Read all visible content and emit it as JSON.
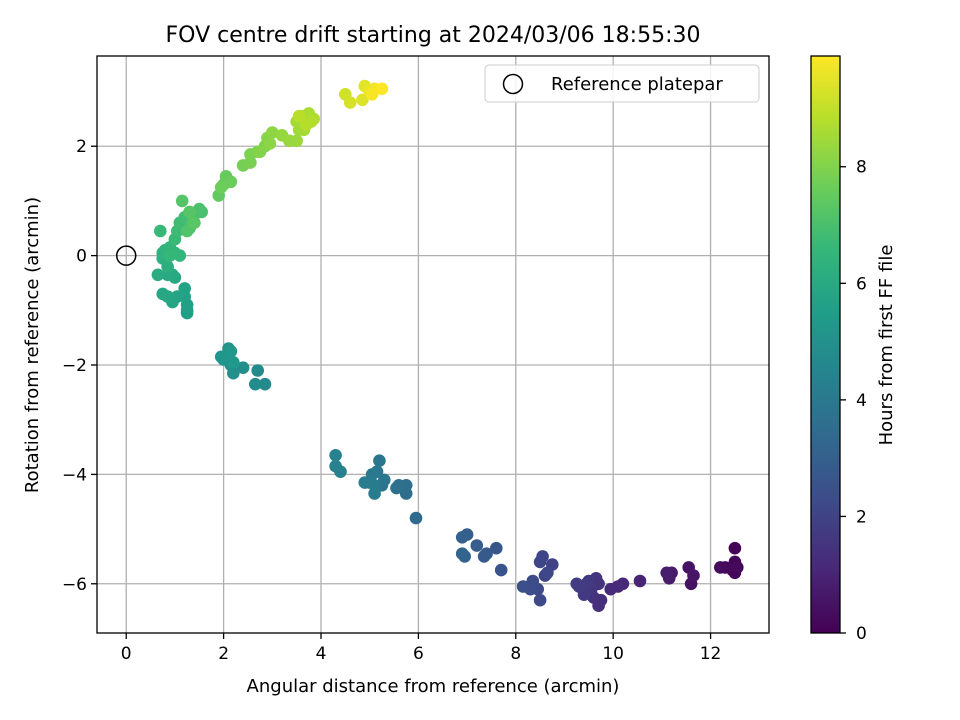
{
  "chart_data": {
    "type": "scatter",
    "title": "FOV centre drift starting at 2024/03/06 18:55:30",
    "xlabel": "Angular distance from reference (arcmin)",
    "ylabel": "Rotation from reference (arcmin)",
    "xlim": [
      -0.6,
      13.2
    ],
    "ylim": [
      -6.9,
      3.65
    ],
    "xticks": [
      0,
      2,
      4,
      6,
      8,
      10,
      12
    ],
    "yticks": [
      -6,
      -4,
      -2,
      0,
      2
    ],
    "grid": true,
    "legend": {
      "placement": "top-right",
      "entries": [
        "Reference platepar"
      ]
    },
    "reference_point": {
      "x": 0,
      "y": 0
    },
    "colorbar": {
      "label": "Hours from first FF file",
      "colormap": "viridis",
      "range": [
        0,
        9.9
      ],
      "ticks": [
        0,
        2,
        4,
        6,
        8
      ]
    },
    "points": [
      [
        12.5,
        -5.35,
        0.05
      ],
      [
        12.5,
        -5.6,
        0.1
      ],
      [
        12.45,
        -5.75,
        0.12
      ],
      [
        12.5,
        -5.8,
        0.15
      ],
      [
        12.3,
        -5.7,
        0.2
      ],
      [
        12.55,
        -5.7,
        0.25
      ],
      [
        12.2,
        -5.7,
        0.3
      ],
      [
        11.6,
        -6.0,
        0.45
      ],
      [
        11.55,
        -5.7,
        0.5
      ],
      [
        11.65,
        -5.85,
        0.55
      ],
      [
        11.2,
        -5.8,
        0.7
      ],
      [
        11.15,
        -5.9,
        0.75
      ],
      [
        11.1,
        -5.8,
        0.8
      ],
      [
        10.55,
        -5.95,
        1.0
      ],
      [
        10.2,
        -6.0,
        1.1
      ],
      [
        10.1,
        -6.05,
        1.15
      ],
      [
        9.95,
        -6.1,
        1.2
      ],
      [
        9.75,
        -6.3,
        1.3
      ],
      [
        9.7,
        -6.4,
        1.35
      ],
      [
        9.6,
        -6.25,
        1.4
      ],
      [
        9.7,
        -6.0,
        1.45
      ],
      [
        9.65,
        -5.9,
        1.5
      ],
      [
        9.55,
        -6.1,
        1.55
      ],
      [
        9.5,
        -5.95,
        1.6
      ],
      [
        9.4,
        -6.2,
        1.65
      ],
      [
        9.45,
        -6.0,
        1.7
      ],
      [
        9.3,
        -6.05,
        1.75
      ],
      [
        9.25,
        -6.0,
        1.8
      ],
      [
        8.75,
        -5.65,
        1.95
      ],
      [
        8.6,
        -5.85,
        2.0
      ],
      [
        8.55,
        -5.5,
        2.05
      ],
      [
        8.5,
        -5.6,
        2.1
      ],
      [
        8.65,
        -5.8,
        2.15
      ],
      [
        8.5,
        -6.3,
        2.2
      ],
      [
        8.45,
        -6.1,
        2.25
      ],
      [
        8.35,
        -5.95,
        2.3
      ],
      [
        8.3,
        -6.1,
        2.35
      ],
      [
        8.15,
        -6.05,
        2.4
      ],
      [
        7.7,
        -5.75,
        2.6
      ],
      [
        7.6,
        -5.35,
        2.65
      ],
      [
        7.4,
        -5.45,
        2.75
      ],
      [
        7.35,
        -5.5,
        2.8
      ],
      [
        7.2,
        -5.3,
        2.9
      ],
      [
        7.0,
        -5.1,
        3.0
      ],
      [
        6.9,
        -5.15,
        3.05
      ],
      [
        6.95,
        -5.5,
        3.1
      ],
      [
        6.9,
        -5.45,
        3.15
      ],
      [
        5.95,
        -4.8,
        3.4
      ],
      [
        5.75,
        -4.35,
        3.5
      ],
      [
        5.7,
        -4.25,
        3.55
      ],
      [
        5.75,
        -4.2,
        3.6
      ],
      [
        5.6,
        -4.2,
        3.65
      ],
      [
        5.55,
        -4.25,
        3.7
      ],
      [
        5.25,
        -4.2,
        3.8
      ],
      [
        5.3,
        -4.1,
        3.85
      ],
      [
        5.2,
        -3.75,
        3.9
      ],
      [
        5.15,
        -3.95,
        3.95
      ],
      [
        5.05,
        -4.0,
        4.0
      ],
      [
        5.1,
        -4.2,
        4.05
      ],
      [
        5.1,
        -4.35,
        4.1
      ],
      [
        5.0,
        -4.15,
        4.15
      ],
      [
        4.9,
        -4.15,
        4.2
      ],
      [
        4.4,
        -3.95,
        4.3
      ],
      [
        4.3,
        -3.85,
        4.35
      ],
      [
        4.3,
        -3.65,
        4.4
      ],
      [
        2.85,
        -2.35,
        4.7
      ],
      [
        2.7,
        -2.1,
        4.75
      ],
      [
        2.65,
        -2.35,
        4.8
      ],
      [
        2.4,
        -2.05,
        4.9
      ],
      [
        2.2,
        -2.15,
        4.95
      ],
      [
        2.15,
        -2.0,
        5.0
      ],
      [
        2.1,
        -1.7,
        5.05
      ],
      [
        2.05,
        -1.85,
        5.1
      ],
      [
        2.0,
        -1.9,
        5.15
      ],
      [
        1.95,
        -1.85,
        5.2
      ],
      [
        2.15,
        -1.75,
        5.25
      ],
      [
        2.2,
        -1.95,
        5.3
      ],
      [
        1.25,
        -1.0,
        5.5
      ],
      [
        1.25,
        -1.05,
        5.55
      ],
      [
        1.25,
        -0.9,
        5.6
      ],
      [
        1.2,
        -0.75,
        5.65
      ],
      [
        1.2,
        -0.6,
        5.7
      ],
      [
        1.05,
        -0.75,
        5.75
      ],
      [
        0.95,
        -0.85,
        5.8
      ],
      [
        0.85,
        -0.75,
        5.85
      ],
      [
        0.75,
        -0.7,
        5.9
      ],
      [
        1.0,
        -0.4,
        5.95
      ],
      [
        0.95,
        -0.35,
        6.0
      ],
      [
        0.85,
        -0.35,
        6.05
      ],
      [
        0.65,
        -0.35,
        6.1
      ],
      [
        0.85,
        -0.2,
        6.2
      ],
      [
        0.75,
        -0.05,
        6.25
      ],
      [
        0.85,
        0.0,
        6.3
      ],
      [
        0.75,
        0.05,
        6.35
      ],
      [
        0.8,
        0.1,
        6.4
      ],
      [
        0.9,
        0.15,
        6.45
      ],
      [
        1.0,
        0.05,
        6.5
      ],
      [
        1.1,
        0.0,
        6.55
      ],
      [
        0.9,
        0.0,
        6.6
      ],
      [
        0.7,
        0.45,
        6.65
      ],
      [
        1.0,
        0.3,
        6.7
      ],
      [
        1.05,
        0.45,
        6.75
      ],
      [
        1.1,
        0.6,
        6.8
      ],
      [
        1.2,
        0.7,
        6.85
      ],
      [
        1.3,
        0.5,
        6.9
      ],
      [
        1.4,
        0.75,
        6.95
      ],
      [
        1.55,
        0.8,
        7.0
      ],
      [
        1.5,
        0.85,
        7.05
      ],
      [
        1.35,
        0.6,
        7.1
      ],
      [
        1.25,
        0.45,
        7.15
      ],
      [
        1.15,
        1.0,
        7.2
      ],
      [
        1.3,
        0.8,
        7.25
      ],
      [
        1.4,
        0.6,
        7.3
      ],
      [
        1.9,
        1.1,
        7.45
      ],
      [
        2.0,
        1.3,
        7.5
      ],
      [
        2.05,
        1.45,
        7.55
      ],
      [
        2.15,
        1.35,
        7.6
      ],
      [
        1.95,
        1.25,
        7.65
      ],
      [
        2.4,
        1.65,
        7.8
      ],
      [
        2.55,
        1.7,
        7.85
      ],
      [
        2.55,
        1.85,
        7.9
      ],
      [
        2.7,
        1.9,
        7.95
      ],
      [
        2.85,
        2.0,
        8.0
      ],
      [
        2.75,
        1.9,
        8.05
      ],
      [
        2.9,
        2.15,
        8.1
      ],
      [
        2.95,
        2.05,
        8.15
      ],
      [
        3.0,
        2.25,
        8.2
      ],
      [
        3.2,
        2.2,
        8.3
      ],
      [
        3.35,
        2.1,
        8.35
      ],
      [
        3.5,
        2.1,
        8.4
      ],
      [
        3.55,
        2.3,
        8.45
      ],
      [
        3.5,
        2.45,
        8.5
      ],
      [
        3.65,
        2.3,
        8.55
      ],
      [
        3.6,
        2.55,
        8.6
      ],
      [
        3.75,
        2.6,
        8.65
      ],
      [
        3.85,
        2.5,
        8.7
      ],
      [
        3.8,
        2.45,
        8.75
      ],
      [
        3.7,
        2.4,
        8.8
      ],
      [
        3.55,
        2.55,
        8.85
      ],
      [
        4.5,
        2.95,
        9.2
      ],
      [
        4.6,
        2.8,
        9.3
      ],
      [
        4.85,
        2.85,
        9.4
      ],
      [
        4.9,
        3.1,
        9.5
      ],
      [
        5.0,
        3.0,
        9.6
      ],
      [
        5.1,
        3.05,
        9.7
      ],
      [
        5.05,
        2.95,
        9.8
      ],
      [
        5.25,
        3.05,
        9.9
      ]
    ]
  }
}
